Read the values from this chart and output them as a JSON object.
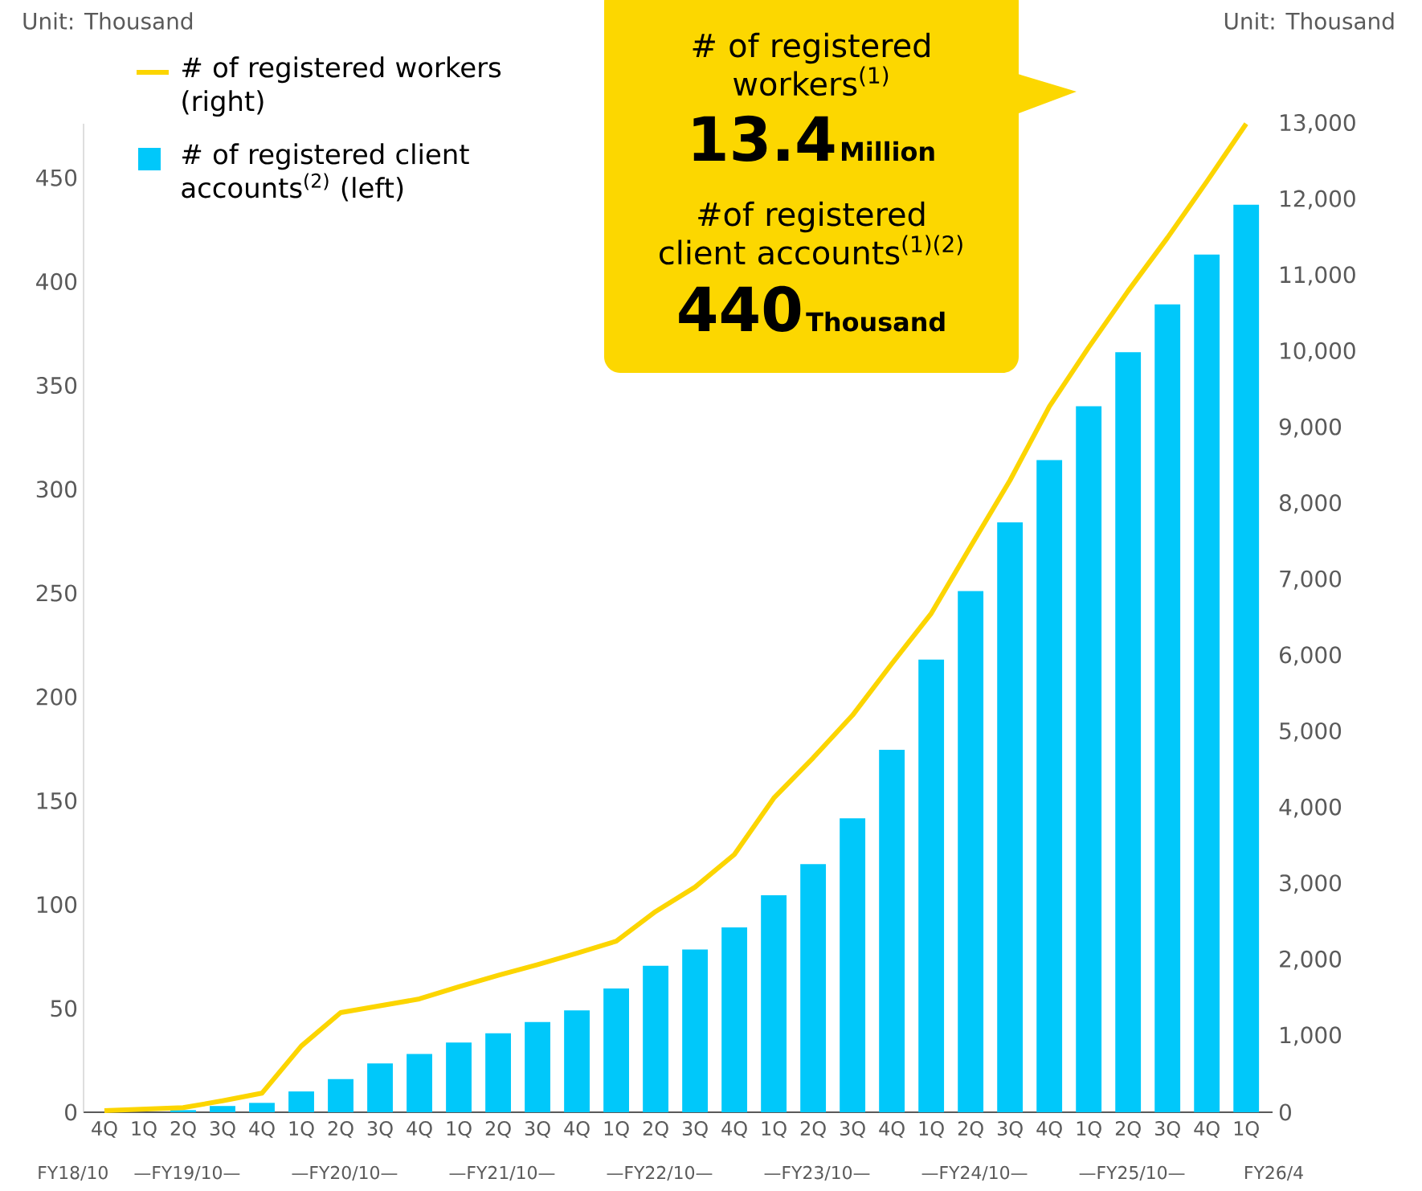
{
  "chart_data": {
    "type": "bar",
    "categories": [
      "4Q",
      "1Q",
      "2Q",
      "3Q",
      "4Q",
      "1Q",
      "2Q",
      "3Q",
      "4Q",
      "1Q",
      "2Q",
      "3Q",
      "4Q",
      "1Q",
      "2Q",
      "3Q",
      "4Q",
      "1Q",
      "2Q",
      "3Q",
      "4Q",
      "1Q",
      "2Q",
      "3Q",
      "4Q",
      "1Q",
      "2Q",
      "3Q",
      "4Q",
      "1Q"
    ],
    "series": [
      {
        "name": "# of registered workers (right)",
        "type": "line",
        "axis": "y2",
        "color": "#fcd500",
        "values": [
          20,
          40,
          60,
          150,
          250,
          870,
          1310,
          1400,
          1490,
          1650,
          1800,
          1940,
          2090,
          2250,
          2640,
          2960,
          3390,
          4130,
          4660,
          5220,
          5900,
          6560,
          7440,
          8310,
          9280,
          10060,
          10800,
          11500,
          12240,
          13000
        ]
      },
      {
        "name": "# of registered client accounts$^{(2)}$ (left)",
        "color": "#00c8fa",
        "values": [
          0,
          0,
          1,
          3,
          4.5,
          10,
          16,
          23.5,
          28,
          33.6,
          38,
          43.4,
          49,
          59.6,
          70.5,
          78.4,
          89,
          104.5,
          119.5,
          141.5,
          174.5,
          218,
          251,
          284,
          314,
          340,
          366,
          389,
          413,
          437
        ]
      }
    ],
    "ylabel": "Unit: Thousand",
    "y2label": "Unit: Thousand",
    "ylim": [
      0,
      476
    ],
    "yticks": [
      0,
      50,
      100,
      150,
      200,
      250,
      300,
      350,
      400,
      450
    ],
    "y2lim": [
      0,
      13000
    ],
    "y2ticks": [
      0,
      {
        "value": 1000,
        "label": "1,000"
      },
      {
        "value": 2000,
        "label": "2,000"
      },
      {
        "value": 3000,
        "label": "3,000"
      },
      {
        "value": 4000,
        "label": "4,000"
      },
      {
        "value": 5000,
        "label": "5,000"
      },
      {
        "value": 6000,
        "label": "6,000"
      },
      {
        "value": 7000,
        "label": "7,000"
      },
      {
        "value": 8000,
        "label": "8,000"
      },
      {
        "value": 9000,
        "label": "9,000"
      },
      {
        "value": 10000,
        "label": "10,000"
      },
      {
        "value": 11000,
        "label": "11,000"
      },
      {
        "value": 12000,
        "label": "12,000"
      },
      {
        "value": 13000,
        "label": "13,000"
      }
    ],
    "legend": "top left",
    "annotations": [
      "# of registered workers$^{(1)}$",
      "13.4",
      "Million",
      "#of registered client accounts$^{(1)(2)}$",
      "440",
      "Thousand",
      "FY18/10",
      "—FY19/10—",
      "—FY20/10—",
      "—FY21/10—",
      "—FY22/10—",
      "—FY23/10—",
      "—FY24/10—",
      "—FY25/10—",
      "FY26/4"
    ]
  }
}
